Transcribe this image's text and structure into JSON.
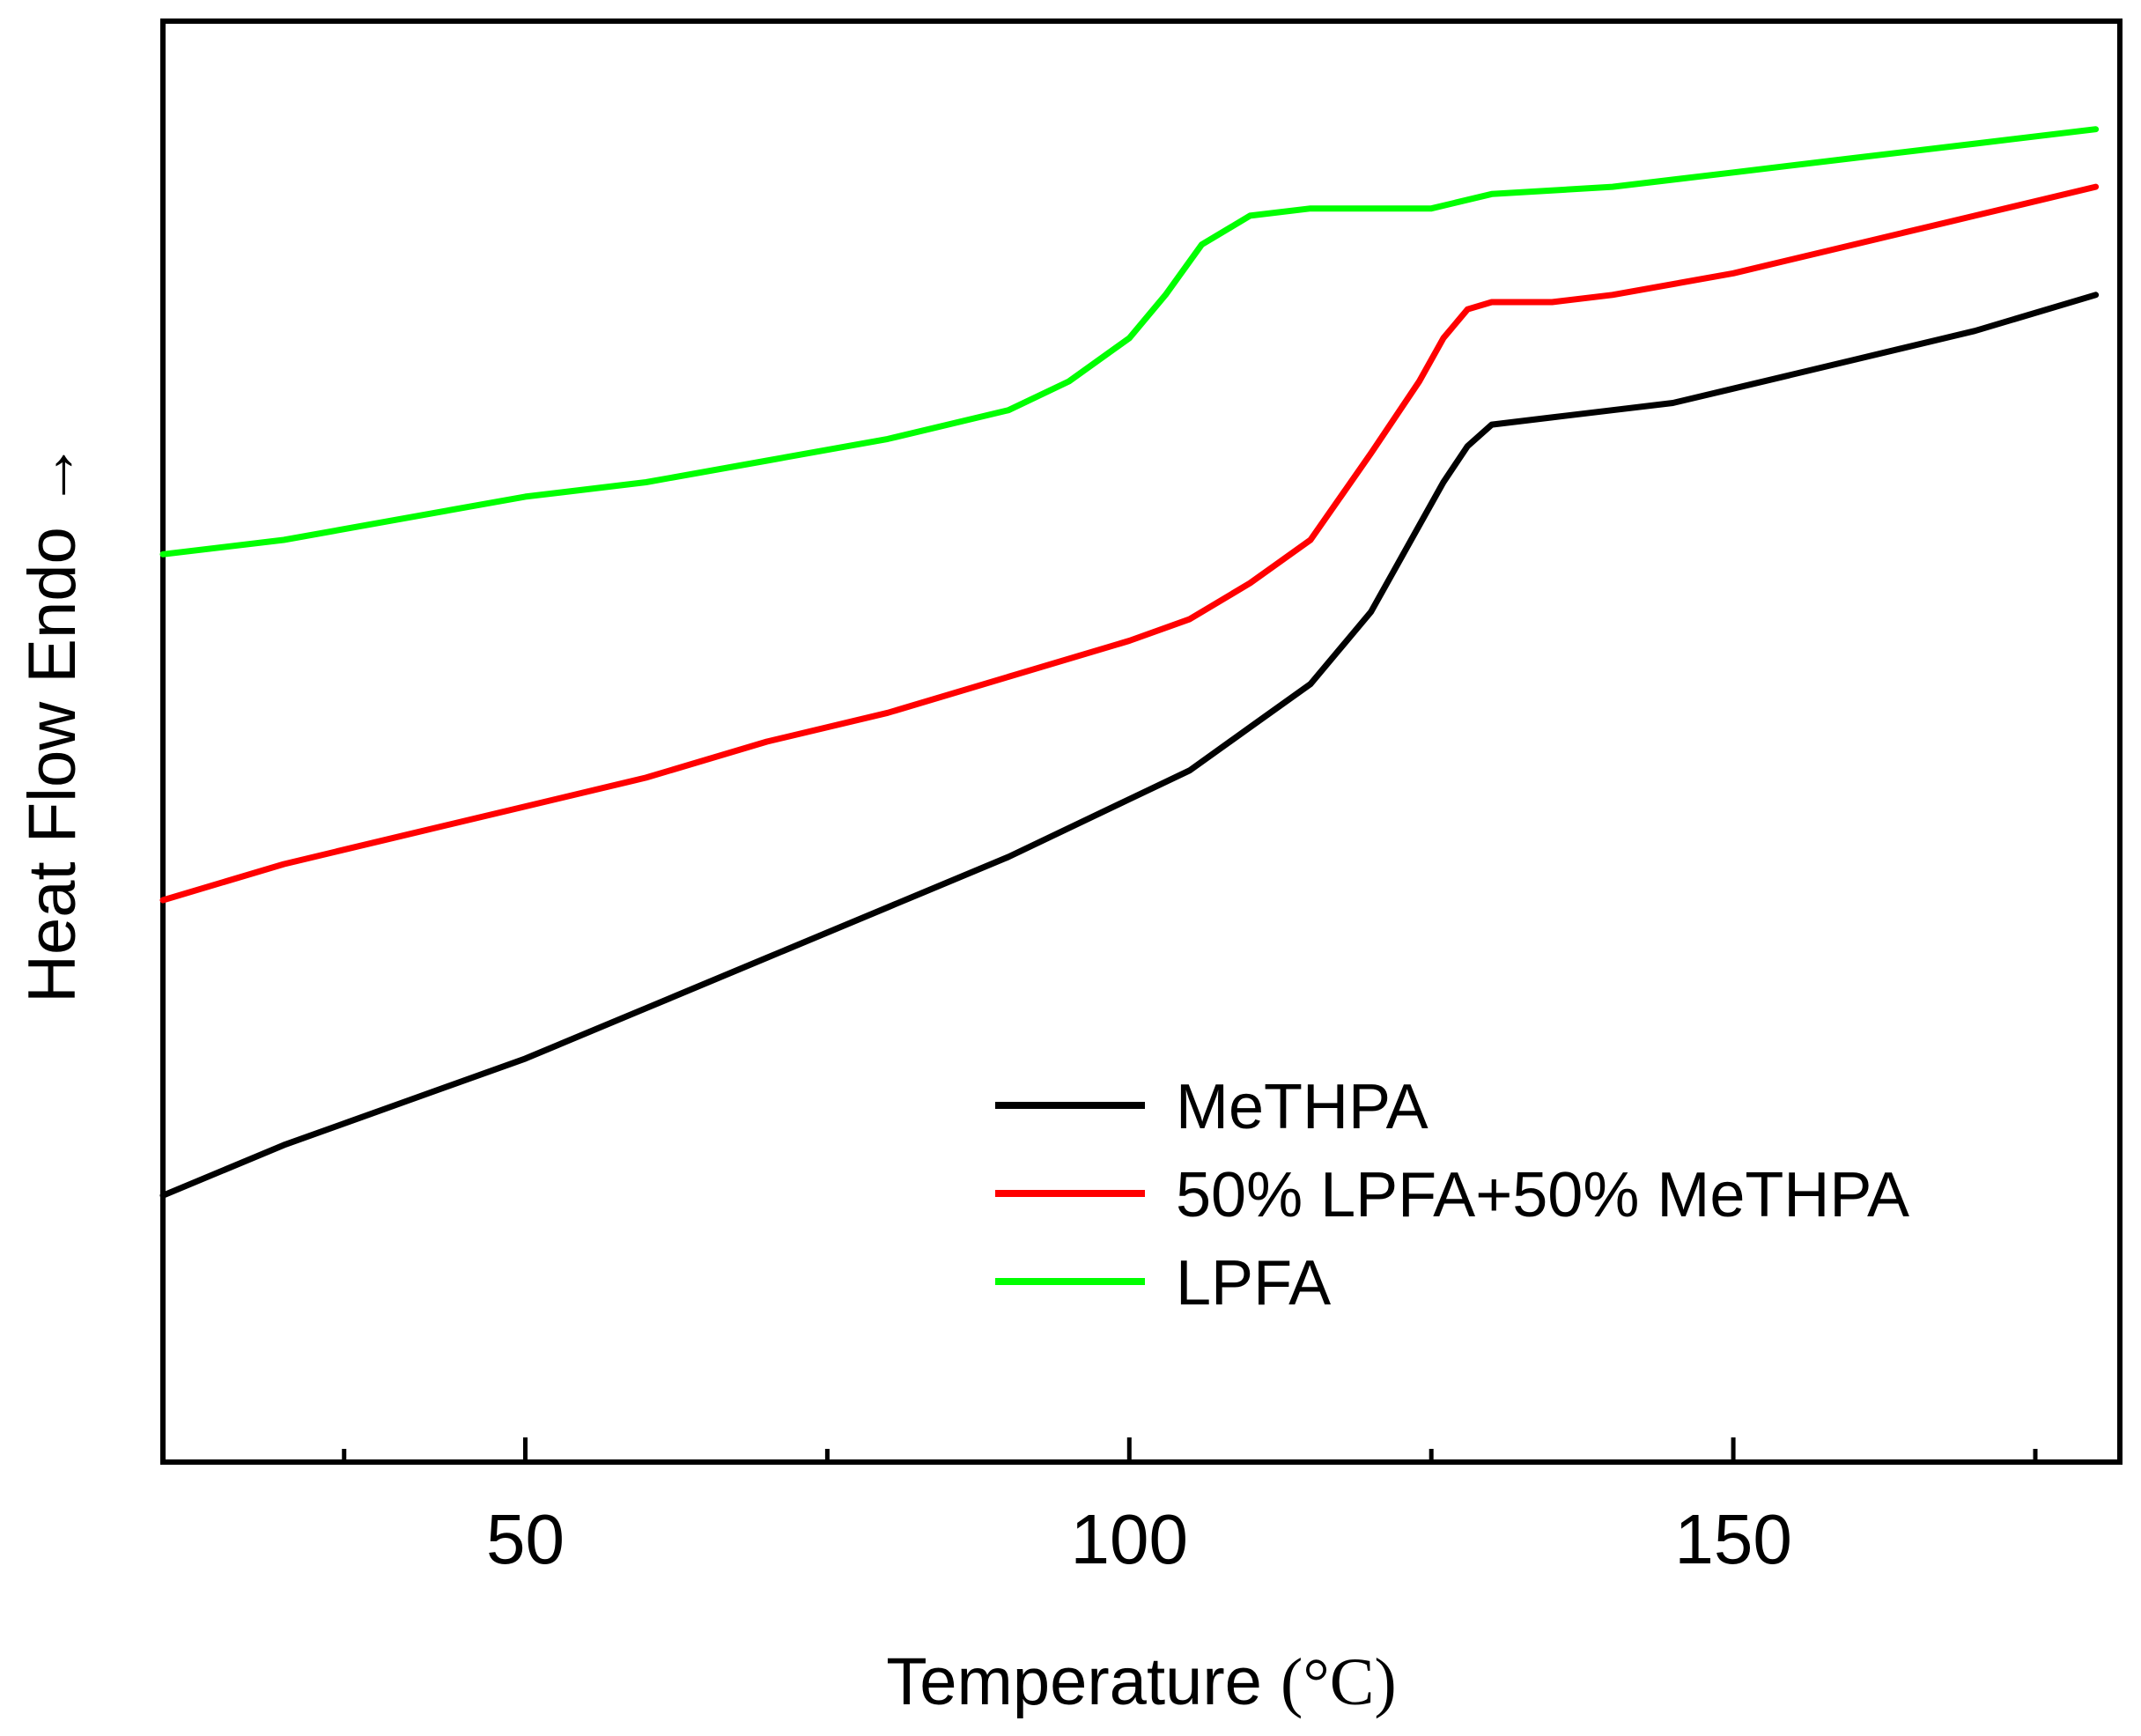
{
  "chart_data": {
    "type": "line",
    "title": "",
    "xlabel": "Temperature",
    "xlabel_unit": "(°C)",
    "ylabel": "Heat Flow Endo",
    "ylabel_arrow": "→",
    "xlim": [
      20,
      182
    ],
    "ylim": [
      0,
      100
    ],
    "x_ticks": [
      50,
      100,
      150
    ],
    "x_minor_ticks": [
      35,
      75,
      125,
      175
    ],
    "y_ticks": [],
    "grid": false,
    "legend_position": "bottom-right",
    "series": [
      {
        "name": "MeTHPA",
        "color": "#000000",
        "x": [
          20,
          30,
          40,
          50,
          60,
          70,
          80,
          90,
          100,
          105,
          110,
          115,
          120,
          123,
          126,
          128,
          130,
          135,
          140,
          145,
          150,
          160,
          170,
          180
        ],
        "y": [
          18.5,
          22,
          25,
          28,
          31.5,
          35,
          38.5,
          42,
          46,
          48,
          51,
          54,
          59,
          63.5,
          68,
          70.5,
          72,
          72.5,
          73,
          73.5,
          74.5,
          76.5,
          78.5,
          81
        ]
      },
      {
        "name": "50% LPFA+50% MeTHPA",
        "color": "#ff0000",
        "x": [
          20,
          30,
          40,
          50,
          60,
          70,
          80,
          90,
          100,
          105,
          110,
          115,
          120,
          124,
          126,
          128,
          130,
          135,
          140,
          150,
          160,
          170,
          180
        ],
        "y": [
          39,
          41.5,
          43.5,
          45.5,
          47.5,
          50,
          52,
          54.5,
          57,
          58.5,
          61,
          64,
          70,
          75,
          78,
          80,
          80.5,
          80.5,
          81,
          82.5,
          84.5,
          86.5,
          88.5
        ]
      },
      {
        "name": "LPFA",
        "color": "#00ff00",
        "x": [
          20,
          30,
          40,
          50,
          60,
          70,
          80,
          90,
          95,
          100,
          103,
          106,
          110,
          115,
          120,
          125,
          130,
          140,
          150,
          160,
          170,
          180
        ],
        "y": [
          63,
          64,
          65.5,
          67,
          68,
          69.5,
          71,
          73,
          75,
          78,
          81,
          84.5,
          86.5,
          87,
          87,
          87,
          88,
          88.5,
          89.5,
          90.5,
          91.5,
          92.5
        ]
      }
    ]
  }
}
